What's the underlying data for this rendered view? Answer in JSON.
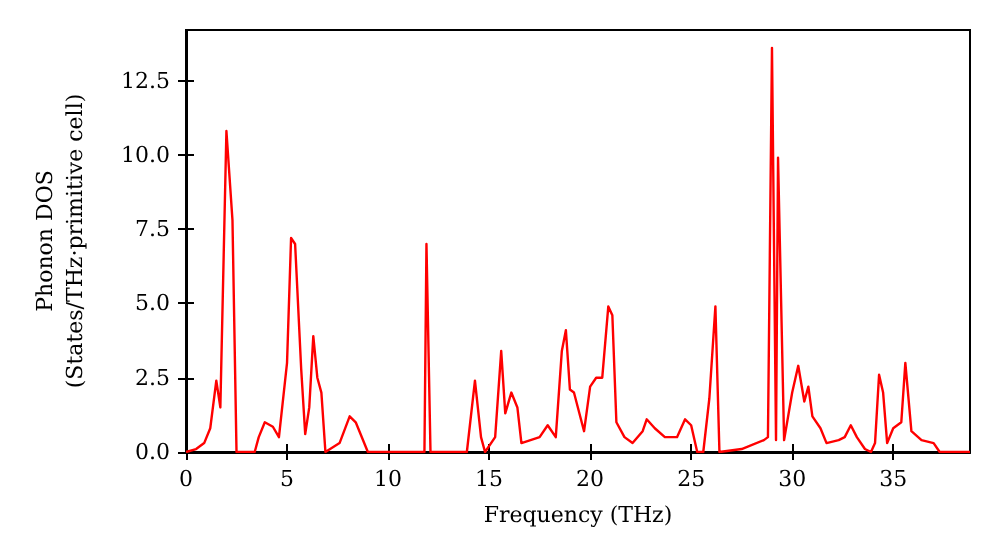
{
  "chart_data": {
    "type": "line",
    "xlabel": "Frequency (THz)",
    "ylabel": "Phonon DOS\n(States/THz·primitive cell)",
    "xlim": [
      0,
      38.8
    ],
    "xticks": [
      0,
      5,
      10,
      15,
      20,
      25,
      30,
      35
    ],
    "ylim": [
      0,
      14.2
    ],
    "yticks": [
      {
        "value": 0,
        "label": "0.0"
      },
      {
        "value": 2.5,
        "label": "2.5"
      },
      {
        "value": 5,
        "label": "5.0"
      },
      {
        "value": 7.5,
        "label": "7.5"
      },
      {
        "value": 10,
        "label": "10.0"
      },
      {
        "value": 12.5,
        "label": "12.5"
      }
    ],
    "grid": false,
    "marker": "none",
    "line_style": "solid",
    "series": [
      {
        "color": "#ff0000",
        "x": [
          0,
          0.5,
          0.9,
          1.2,
          1.5,
          1.7,
          2.0,
          2.3,
          2.5,
          3.4,
          3.6,
          3.9,
          4.3,
          4.6,
          5.0,
          5.2,
          5.4,
          5.7,
          5.9,
          6.1,
          6.3,
          6.5,
          6.7,
          6.9,
          7.6,
          8.1,
          8.4,
          9.0,
          11.8,
          11.9,
          12.1,
          13.9,
          14.3,
          14.6,
          14.8,
          15.3,
          15.6,
          15.8,
          16.1,
          16.4,
          16.6,
          17.5,
          17.9,
          18.3,
          18.6,
          18.8,
          19.0,
          19.2,
          19.7,
          20.0,
          20.3,
          20.6,
          20.9,
          21.1,
          21.3,
          21.7,
          22.1,
          22.6,
          22.8,
          23.2,
          23.7,
          24.3,
          24.7,
          25.0,
          25.3,
          25.6,
          25.9,
          26.2,
          26.4,
          27.5,
          28.6,
          28.8,
          29.0,
          29.2,
          29.3,
          29.6,
          30.0,
          30.3,
          30.6,
          30.8,
          31.0,
          31.4,
          31.7,
          32.3,
          32.6,
          32.9,
          33.2,
          33.6,
          33.9,
          34.1,
          34.3,
          34.5,
          34.7,
          35.0,
          35.4,
          35.6,
          35.9,
          36.4,
          37.0,
          37.3,
          38.8
        ],
        "values": [
          0,
          0.1,
          0.3,
          0.8,
          2.4,
          1.5,
          10.8,
          7.8,
          0,
          0,
          0.5,
          1.0,
          0.85,
          0.5,
          3.0,
          7.2,
          7.0,
          2.8,
          0.6,
          1.5,
          3.9,
          2.5,
          2.0,
          0,
          0.3,
          1.2,
          1.0,
          0,
          0,
          7.0,
          0,
          0,
          2.4,
          0.5,
          0,
          0.5,
          3.4,
          1.3,
          2.0,
          1.5,
          0.3,
          0.5,
          0.9,
          0.5,
          3.4,
          4.1,
          2.1,
          2.0,
          0.7,
          2.2,
          2.5,
          2.5,
          4.9,
          4.6,
          1.0,
          0.5,
          0.3,
          0.7,
          1.1,
          0.8,
          0.5,
          0.5,
          1.1,
          0.9,
          0,
          0,
          1.8,
          4.9,
          0,
          0.1,
          0.4,
          0.5,
          13.6,
          0.4,
          9.9,
          0.4,
          2.0,
          2.9,
          1.7,
          2.2,
          1.2,
          0.8,
          0.3,
          0.4,
          0.5,
          0.9,
          0.5,
          0.1,
          0,
          0.3,
          2.6,
          2.0,
          0.3,
          0.8,
          1.0,
          3.0,
          0.7,
          0.4,
          0.3,
          0,
          0
        ]
      }
    ]
  }
}
